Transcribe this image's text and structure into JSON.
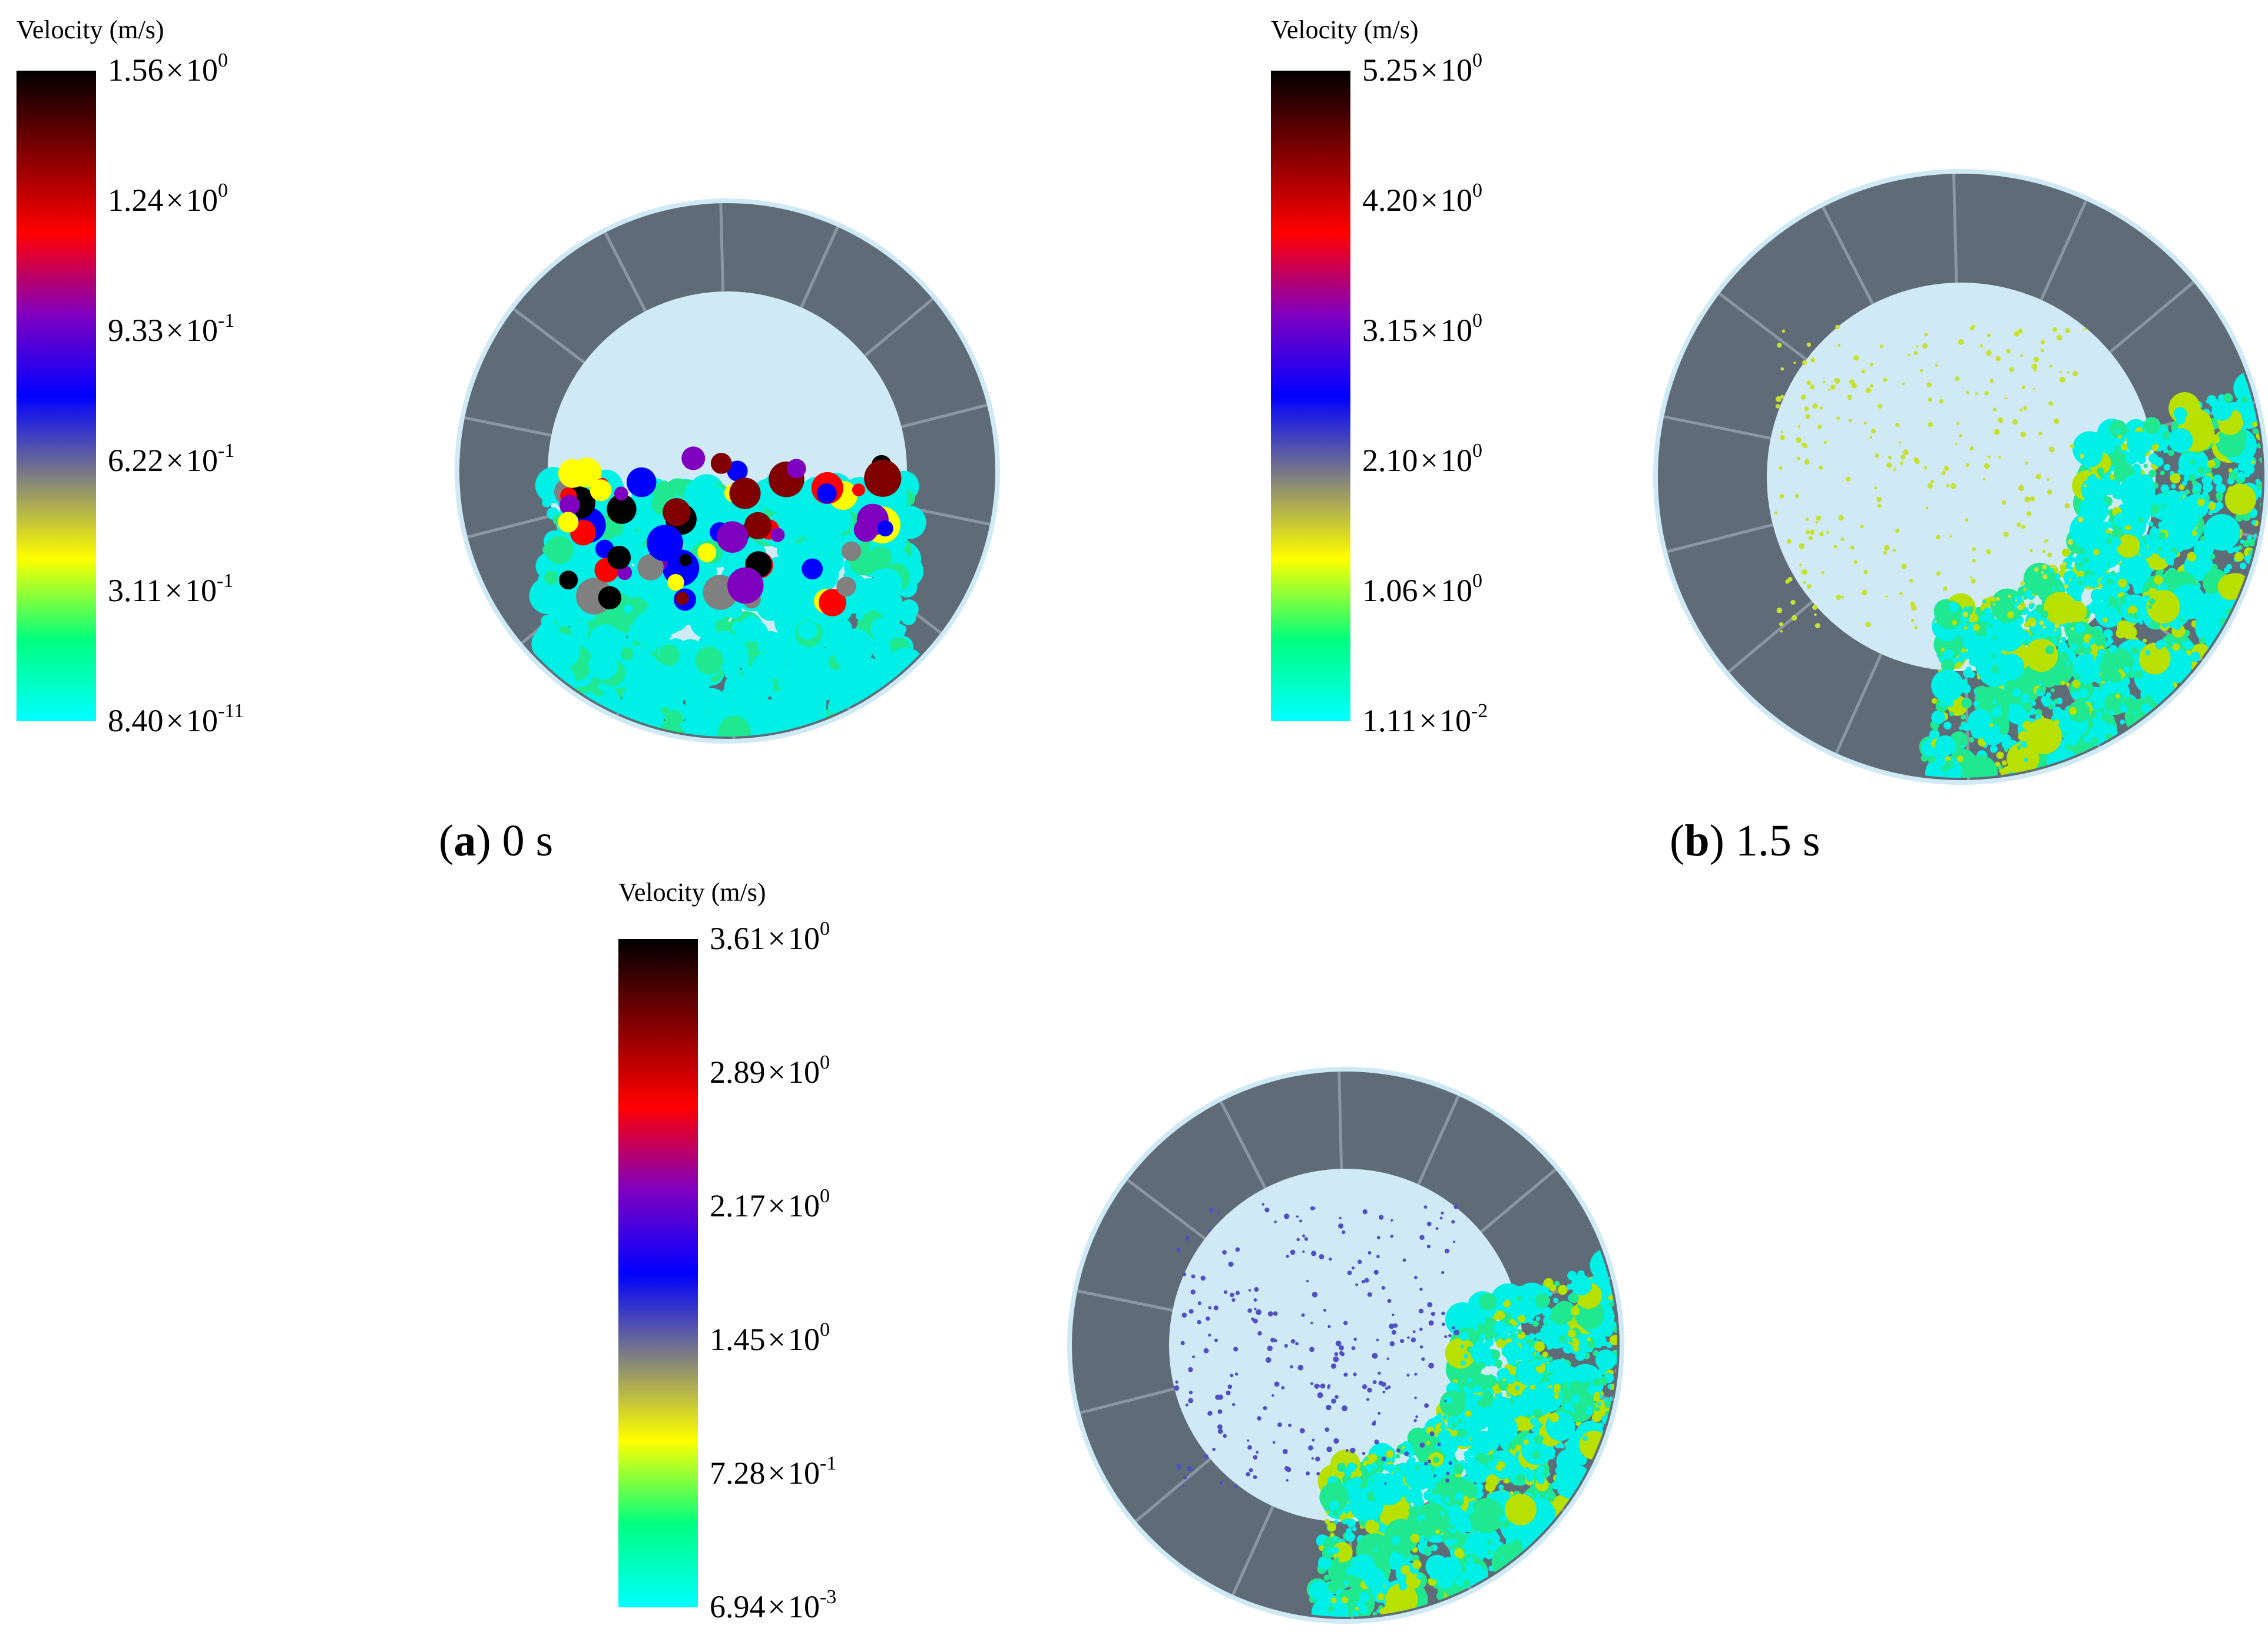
{
  "colormap": [
    "#00ffff",
    "#00ff80",
    "#ffff00",
    "#808080",
    "#0000ff",
    "#8000c0",
    "#ff0000",
    "#800000",
    "#000000"
  ],
  "panels": [
    {
      "id": "a",
      "legend_title": "Velocity (m/s)",
      "ticks": [
        {
          "mantissa": "1.56",
          "exponent": "0"
        },
        {
          "mantissa": "1.24",
          "exponent": "0"
        },
        {
          "mantissa": "9.33",
          "exponent": "-1"
        },
        {
          "mantissa": "6.22",
          "exponent": "-1"
        },
        {
          "mantissa": "3.11",
          "exponent": "-1"
        },
        {
          "mantissa": "8.40",
          "exponent": "-11"
        }
      ],
      "caption_letter": "a",
      "caption_time": "0 s"
    },
    {
      "id": "b",
      "legend_title": "Velocity (m/s)",
      "ticks": [
        {
          "mantissa": "5.25",
          "exponent": "0"
        },
        {
          "mantissa": "4.20",
          "exponent": "0"
        },
        {
          "mantissa": "3.15",
          "exponent": "0"
        },
        {
          "mantissa": "2.10",
          "exponent": "0"
        },
        {
          "mantissa": "1.06",
          "exponent": "0"
        },
        {
          "mantissa": "1.11",
          "exponent": "-2"
        }
      ],
      "caption_letter": "b",
      "caption_time": "1.5 s"
    },
    {
      "id": "c",
      "legend_title": "Velocity (m/s)",
      "ticks": [
        {
          "mantissa": "3.61",
          "exponent": "0"
        },
        {
          "mantissa": "2.89",
          "exponent": "0"
        },
        {
          "mantissa": "2.17",
          "exponent": "0"
        },
        {
          "mantissa": "1.45",
          "exponent": "0"
        },
        {
          "mantissa": "7.28",
          "exponent": "-1"
        },
        {
          "mantissa": "6.94",
          "exponent": "-3"
        }
      ]
    }
  ]
}
